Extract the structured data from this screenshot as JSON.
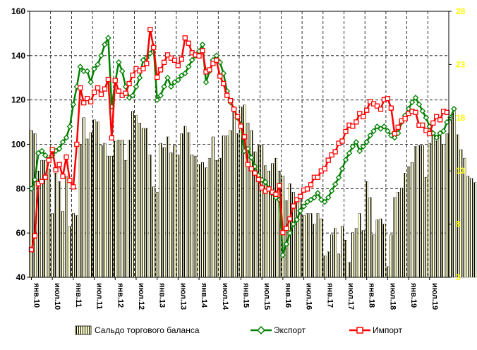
{
  "chart_data": {
    "type": "bar+line",
    "title": "",
    "xlabel": "",
    "ylabel": "",
    "y_left_lim": [
      40,
      160
    ],
    "y_left_ticks": [
      40,
      60,
      80,
      100,
      120,
      140,
      160
    ],
    "y_right_lim": [
      3,
      28
    ],
    "y_right_ticks": [
      3,
      8,
      13,
      18,
      23,
      28
    ],
    "grid": true,
    "legend_placement": "bottom",
    "colors": {
      "bars": "#ffffcc",
      "bar_stripe": "#000000",
      "export": "#008000",
      "import": "#ff0000",
      "right_axis": "#ffff00",
      "grid": "#000000"
    },
    "x_tick_labels": [
      "янв.10",
      "июл.10",
      "янв.11",
      "июл.11",
      "янв.12",
      "июл.12",
      "янв.13",
      "июл.13",
      "янв.14",
      "июл.14",
      "янв.15",
      "июл.15",
      "янв.16",
      "июл.16",
      "янв.17",
      "июл.17",
      "янв.18",
      "июл.18",
      "янв.19",
      "июл.19"
    ],
    "months": 120,
    "series": [
      {
        "name": "Сальдо торгового баланса",
        "kind": "bar",
        "axis": "right",
        "values": [
          16.8,
          16.5,
          13.0,
          14.0,
          14.0,
          13.2,
          9.0,
          12.8,
          12.0,
          9.2,
          12.5,
          7.8,
          9.0,
          8.8,
          15.5,
          18.0,
          16.0,
          16.6,
          17.8,
          17.6,
          15.4,
          15.6,
          14.4,
          14.4,
          15.8,
          15.9,
          15.9,
          14.0,
          15.9,
          18.6,
          18.2,
          17.5,
          17.0,
          17.0,
          14.5,
          11.5,
          11.0,
          15.6,
          15.2,
          16.2,
          14.7,
          15.4,
          14.5,
          16.5,
          17.2,
          16.6,
          14.5,
          14.4,
          13.6,
          13.8,
          13.3,
          14.2,
          16.2,
          14.0,
          14.2,
          16.3,
          16.3,
          16.8,
          19.0,
          16.5,
          19.0,
          19.2,
          17.5,
          16.8,
          14.8,
          15.4,
          15.4,
          13.5,
          13.0,
          13.7,
          14.2,
          13.0,
          12.5,
          10.2,
          11.8,
          11.0,
          10.0,
          10.5,
          8.8,
          9.0,
          9.0,
          8.0,
          9.0,
          8.5,
          5.0,
          5.4,
          7.0,
          7.6,
          5.2,
          7.8,
          6.5,
          4.4,
          7.2,
          7.6,
          9.0,
          7.4,
          12.0,
          10.5,
          7.0,
          8.4,
          8.5,
          8.0,
          4.0,
          7.0,
          10.5,
          11.0,
          11.4,
          12.8,
          13.4,
          13.8,
          15.3,
          15.4,
          15.4,
          12.4,
          15.6,
          16.5,
          15.8,
          16.3,
          15.5,
          16.5,
          17.9,
          19.0,
          16.4,
          15.0,
          14.2,
          12.5,
          12.3,
          11.9,
          15.0,
          13.4,
          12.9,
          15.3
        ]
      },
      {
        "name": "Экспорт",
        "kind": "line",
        "axis": "left",
        "values": [
          80,
          84,
          96,
          97,
          95,
          93,
          95,
          97,
          98,
          101,
          103,
          108,
          118,
          126,
          135,
          133,
          133,
          128,
          134,
          136,
          140,
          145,
          148,
          117,
          128,
          137,
          133,
          126,
          121,
          122,
          126,
          130,
          138,
          139,
          141,
          144,
          120,
          122,
          126,
          130,
          126,
          128,
          129,
          131,
          132,
          135,
          138,
          140,
          142,
          145,
          128,
          133,
          138,
          140,
          137,
          132,
          124,
          119,
          116,
          112,
          109,
          97,
          98,
          94,
          90,
          86,
          84,
          83,
          80,
          78,
          76,
          75,
          50,
          55,
          60,
          64,
          66,
          70,
          72,
          74,
          75,
          76,
          78,
          75,
          74,
          76,
          79,
          82,
          85,
          89,
          93,
          96,
          99,
          101,
          97,
          99,
          101,
          104,
          106,
          108,
          107,
          108,
          106,
          104,
          103,
          105,
          110,
          113,
          116,
          119,
          121,
          118,
          115,
          112,
          108,
          105,
          103,
          105,
          106,
          110,
          112,
          116
        ]
      },
      {
        "name": "Импорт",
        "kind": "line",
        "axis": "right",
        "values": [
          5.6,
          6.9,
          11.8,
          12.0,
          12.4,
          14.0,
          15.0,
          13.1,
          13.6,
          12.5,
          14.3,
          12.1,
          11.5,
          15.5,
          20.8,
          19.4,
          19.8,
          19.5,
          20.4,
          20.8,
          20.2,
          20.7,
          21.6,
          16.1,
          21.5,
          20.5,
          20.1,
          20.3,
          21.2,
          22.0,
          22.6,
          22.4,
          22.6,
          23.1,
          26.3,
          24.6,
          21.8,
          22.5,
          23.2,
          23.9,
          23.6,
          23.4,
          22.9,
          23.5,
          25.5,
          25.0,
          24.1,
          23.9,
          23.8,
          24.3,
          22.3,
          22.5,
          23.1,
          23.4,
          21.9,
          21.2,
          20.1,
          19.6,
          18.8,
          18.1,
          17.2,
          16.2,
          13.6,
          13.2,
          12.8,
          12.2,
          11.4,
          11.1,
          11.3,
          11.0,
          10.8,
          11.6,
          7.2,
          7.6,
          8.5,
          9.7,
          10.3,
          10.6,
          11.2,
          11.3,
          11.7,
          12.4,
          12.4,
          13.0,
          13.2,
          14.0,
          14.5,
          14.8,
          15.6,
          15.8,
          16.7,
          17.3,
          17.2,
          17.6,
          18.4,
          18.1,
          18.7,
          19.5,
          19.3,
          19.1,
          18.8,
          19.7,
          19.8,
          18.9,
          16.5,
          17.1,
          17.7,
          17.9,
          18.4,
          18.6,
          18.5,
          17.3,
          17.3,
          16.8,
          16.5,
          17.5,
          18.1,
          17.8,
          18.6,
          18.5
        ]
      }
    ]
  }
}
